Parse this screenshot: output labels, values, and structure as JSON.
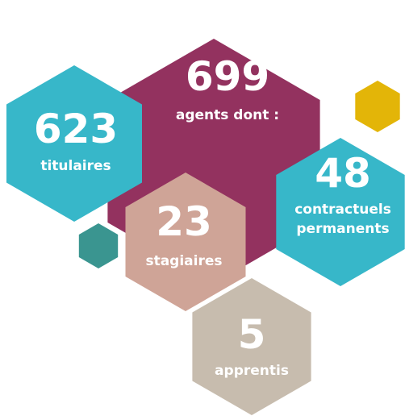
{
  "items": [
    {
      "number": 699,
      "label": "agents dont :"
    },
    {
      "number": 623,
      "label": "titulaires"
    },
    {
      "number": 48,
      "label": [
        "contractuels",
        "permanents"
      ]
    },
    {
      "number": 23,
      "label": "stagiaires"
    },
    {
      "number": 5,
      "label": "apprentis"
    }
  ]
}
